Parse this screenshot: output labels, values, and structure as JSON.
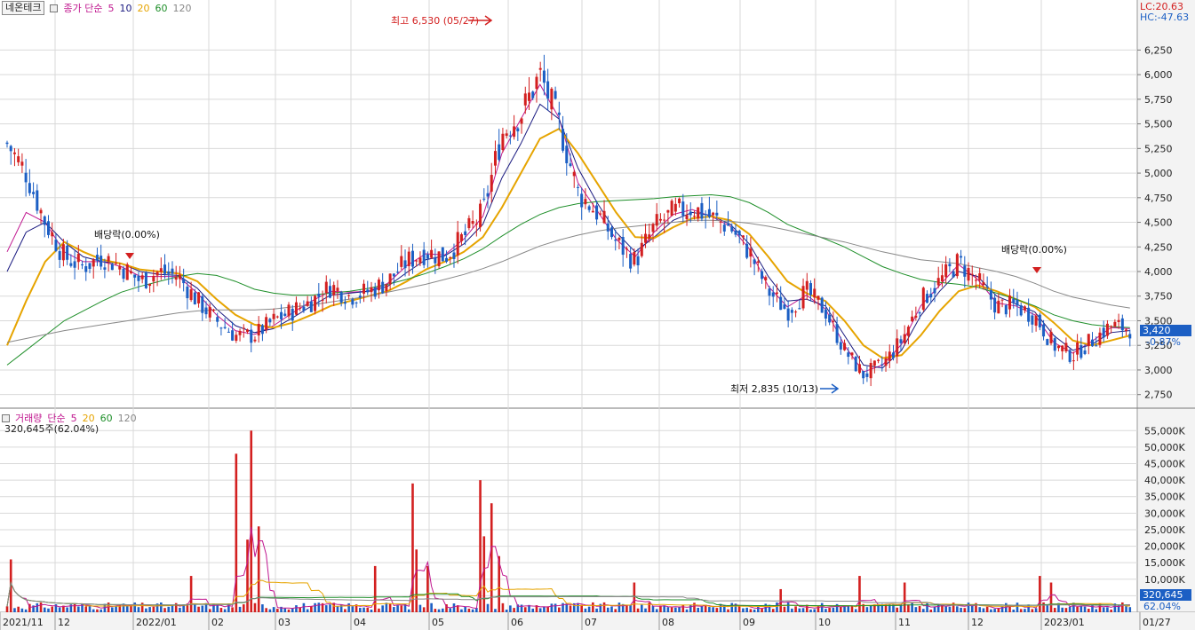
{
  "price_panel": {
    "stock_name": "네온테크",
    "legend_title": "종가 단순",
    "ma_labels": [
      {
        "label": "5",
        "color": "#c0178f"
      },
      {
        "label": "10",
        "color": "#1a1a80"
      },
      {
        "label": "20",
        "color": "#e6a400"
      },
      {
        "label": "60",
        "color": "#1f8f2a"
      },
      {
        "label": "120",
        "color": "#888888"
      }
    ],
    "lc": "LC:20.63",
    "hc": "HC:-47.63",
    "high_note": "최고 6,530 (05/27)",
    "low_note": "최저 2,835 (10/13)",
    "dividend_notes": [
      "배당락(0.00%)",
      "배당락(0.00%)"
    ],
    "current_price": "3,420",
    "current_change": "-0.87%"
  },
  "volume_panel": {
    "legend_title": "거래량",
    "legend_sub": "단순",
    "ma_labels": [
      {
        "label": "5",
        "color": "#c0178f"
      },
      {
        "label": "20",
        "color": "#e6a400"
      },
      {
        "label": "60",
        "color": "#1f8f2a"
      },
      {
        "label": "120",
        "color": "#888888"
      }
    ],
    "info": "320,645주(62.04%)",
    "current_volume": "320,645",
    "current_pct": "62.04%"
  },
  "colors": {
    "up": "#d32020",
    "down": "#1c5fc4",
    "grid": "#d9d9d9",
    "axis_bg": "#f3f3f3"
  },
  "chart_data": [
    {
      "type": "candlestick",
      "title": "네온테크",
      "y_ticks": [
        2750,
        3000,
        3250,
        3500,
        3750,
        4000,
        4250,
        4500,
        4750,
        5000,
        5250,
        5500,
        5750,
        6000,
        6250
      ],
      "y_tick_labels": [
        "2,750",
        "3,000",
        "3,250",
        "3,500",
        "3,750",
        "4,000",
        "4,250",
        "4,500",
        "4,750",
        "5,000",
        "5,250",
        "5,500",
        "5,750",
        "6,000",
        "6,250"
      ],
      "ylim": [
        2630,
        6560
      ],
      "x_labels": [
        "2021/11",
        "12",
        "2022/01",
        "02",
        "03",
        "04",
        "05",
        "06",
        "07",
        "08",
        "09",
        "10",
        "11",
        "12",
        "2023/01",
        "01/27"
      ],
      "grid": true,
      "close_path": [
        5300,
        5000,
        4500,
        4150,
        4050,
        4150,
        4050,
        3900,
        4000,
        3950,
        3700,
        3500,
        3350,
        3350,
        3500,
        3600,
        3700,
        3850,
        3750,
        3800,
        3900,
        4100,
        4200,
        4150,
        4350,
        4600,
        5400,
        5600,
        6000,
        5500,
        4800,
        4600,
        4300,
        4100,
        4450,
        4600,
        4650,
        4550,
        4450,
        4200,
        3800,
        3600,
        3800,
        3600,
        3200,
        2950,
        3050,
        3300,
        3700,
        3900,
        4100,
        3900,
        3650,
        3650,
        3550,
        3250,
        3150,
        3300,
        3450,
        3420
      ],
      "ma_series": [
        {
          "period": "5",
          "values": [
            4200,
            4600,
            4500,
            4200,
            4100,
            4100,
            4050,
            3950,
            3950,
            3950,
            3780,
            3560,
            3400,
            3360,
            3450,
            3580,
            3700,
            3800,
            3790,
            3800,
            3880,
            4060,
            4180,
            4170,
            4330,
            4560,
            5200,
            5550,
            5900,
            5560,
            4900,
            4620,
            4330,
            4150,
            4400,
            4580,
            4630,
            4560,
            4460,
            4230,
            3850,
            3640,
            3760,
            3620,
            3250,
            2980,
            3050,
            3260,
            3650,
            3860,
            4070,
            3920,
            3680,
            3650,
            3560,
            3280,
            3170,
            3290,
            3430,
            3420
          ]
        },
        {
          "period": "10",
          "values": [
            4000,
            4400,
            4500,
            4300,
            4150,
            4100,
            4080,
            4000,
            3970,
            3960,
            3830,
            3620,
            3450,
            3380,
            3420,
            3530,
            3650,
            3760,
            3780,
            3800,
            3850,
            3990,
            4120,
            4160,
            4280,
            4480,
            4950,
            5300,
            5700,
            5550,
            5050,
            4700,
            4400,
            4200,
            4350,
            4520,
            4600,
            4570,
            4480,
            4280,
            3950,
            3700,
            3720,
            3650,
            3350,
            3050,
            3020,
            3200,
            3550,
            3800,
            4000,
            3950,
            3750,
            3670,
            3590,
            3350,
            3200,
            3260,
            3380,
            3400
          ]
        },
        {
          "period": "20",
          "values": [
            3250,
            3700,
            4100,
            4300,
            4200,
            4120,
            4080,
            4020,
            4000,
            3980,
            3900,
            3720,
            3560,
            3460,
            3430,
            3480,
            3560,
            3650,
            3700,
            3750,
            3800,
            3900,
            4020,
            4100,
            4200,
            4350,
            4650,
            5000,
            5350,
            5450,
            5200,
            4900,
            4600,
            4350,
            4340,
            4450,
            4540,
            4560,
            4520,
            4380,
            4150,
            3900,
            3780,
            3700,
            3500,
            3250,
            3120,
            3150,
            3350,
            3600,
            3800,
            3860,
            3800,
            3720,
            3640,
            3480,
            3300,
            3250,
            3300,
            3350
          ]
        },
        {
          "period": "60",
          "values": [
            3050,
            3200,
            3350,
            3500,
            3600,
            3700,
            3790,
            3850,
            3900,
            3950,
            3980,
            3960,
            3900,
            3820,
            3780,
            3760,
            3760,
            3780,
            3800,
            3830,
            3870,
            3920,
            3980,
            4050,
            4130,
            4230,
            4360,
            4480,
            4580,
            4650,
            4690,
            4710,
            4720,
            4730,
            4740,
            4760,
            4770,
            4780,
            4760,
            4700,
            4600,
            4480,
            4400,
            4330,
            4250,
            4150,
            4050,
            3980,
            3920,
            3890,
            3870,
            3840,
            3780,
            3720,
            3650,
            3560,
            3500,
            3460,
            3440,
            3430
          ]
        },
        {
          "period": "120",
          "values": [
            3280,
            3320,
            3360,
            3400,
            3430,
            3460,
            3490,
            3520,
            3550,
            3580,
            3600,
            3610,
            3610,
            3610,
            3620,
            3640,
            3660,
            3690,
            3720,
            3750,
            3790,
            3830,
            3870,
            3920,
            3970,
            4030,
            4100,
            4180,
            4260,
            4320,
            4370,
            4410,
            4440,
            4460,
            4480,
            4500,
            4520,
            4520,
            4510,
            4490,
            4460,
            4420,
            4380,
            4340,
            4300,
            4250,
            4200,
            4160,
            4120,
            4100,
            4080,
            4040,
            4000,
            3950,
            3880,
            3800,
            3740,
            3700,
            3660,
            3630
          ]
        }
      ],
      "high": {
        "value": 6530,
        "date": "05/27"
      },
      "low": {
        "value": 2835,
        "date": "10/13"
      },
      "last_close": 3420
    },
    {
      "type": "bar",
      "title": "거래량",
      "y_ticks": [
        5000,
        10000,
        15000,
        20000,
        25000,
        30000,
        35000,
        40000,
        45000,
        50000,
        55000
      ],
      "y_tick_labels": [
        "5,000K",
        "10,000K",
        "15,000K",
        "20,000K",
        "25,000K",
        "30,000K",
        "35,000K",
        "40,000K",
        "45,000K",
        "50,000K",
        "55,000K"
      ],
      "ylim": [
        0,
        57500
      ],
      "spikes": [
        {
          "position": 0.004,
          "value": 16000
        },
        {
          "position": 0.165,
          "value": 11000
        },
        {
          "position": 0.205,
          "value": 48000
        },
        {
          "position": 0.214,
          "value": 22000
        },
        {
          "position": 0.218,
          "value": 55000
        },
        {
          "position": 0.224,
          "value": 26000
        },
        {
          "position": 0.328,
          "value": 14000
        },
        {
          "position": 0.362,
          "value": 39000
        },
        {
          "position": 0.366,
          "value": 19000
        },
        {
          "position": 0.376,
          "value": 14000
        },
        {
          "position": 0.42,
          "value": 40000
        },
        {
          "position": 0.424,
          "value": 23000
        },
        {
          "position": 0.432,
          "value": 33000
        },
        {
          "position": 0.437,
          "value": 17000
        },
        {
          "position": 0.56,
          "value": 9000
        },
        {
          "position": 0.69,
          "value": 7000
        },
        {
          "position": 0.76,
          "value": 11000
        },
        {
          "position": 0.8,
          "value": 9000
        },
        {
          "position": 0.92,
          "value": 11000
        },
        {
          "position": 0.93,
          "value": 9000
        }
      ],
      "last_volume": 320645
    }
  ]
}
